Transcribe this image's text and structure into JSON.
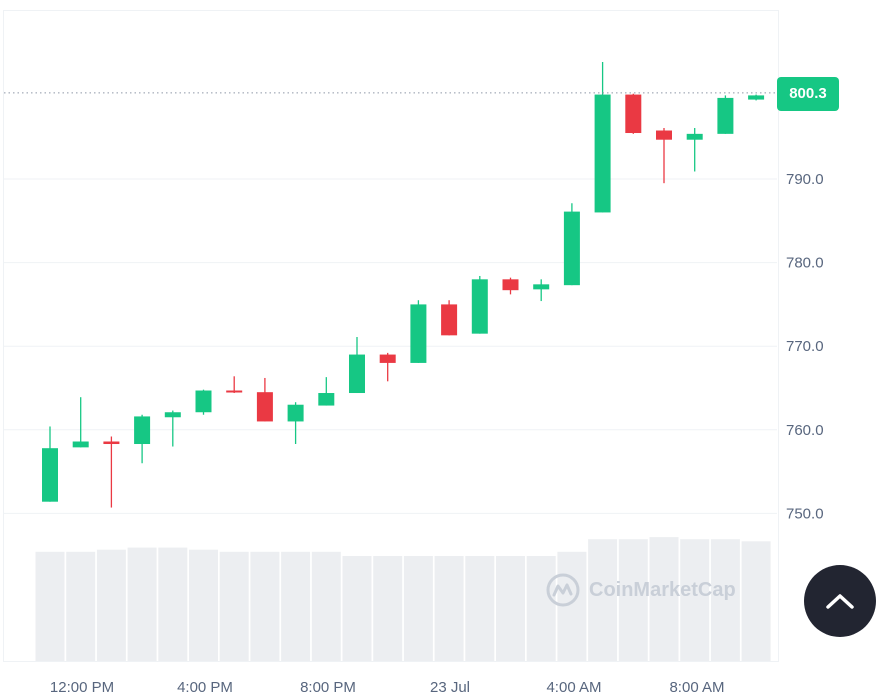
{
  "colors": {
    "up": "#16c784",
    "down": "#ea3943",
    "volume": "#eceef1",
    "grid": "#eff2f5",
    "text": "#58667e",
    "button": "#222531"
  },
  "current_price": {
    "value": 800.3,
    "label": "800.3"
  },
  "watermark": {
    "text": "CoinMarketCap",
    "icon": "coinmarketcap-logo-icon"
  },
  "scroll_top_button": {
    "icon": "chevron-up-icon"
  },
  "chart_data": {
    "type": "candlestick",
    "y_axis": {
      "ticks": [
        "790.0",
        "780.0",
        "770.0",
        "760.0",
        "750.0"
      ],
      "tick_values": [
        790,
        780,
        770,
        760,
        750
      ],
      "position": "right"
    },
    "x_axis": {
      "ticks": [
        "12:00 PM",
        "4:00 PM",
        "8:00 PM",
        "23 Jul",
        "4:00 AM",
        "8:00 AM"
      ]
    },
    "ylim": [
      742,
      800.3
    ],
    "candles": [
      {
        "open": 751.4,
        "high": 760.4,
        "low": 751.4,
        "close": 757.8
      },
      {
        "open": 757.9,
        "high": 763.9,
        "low": 757.9,
        "close": 758.6
      },
      {
        "open": 758.6,
        "high": 759.2,
        "low": 750.7,
        "close": 758.3
      },
      {
        "open": 758.3,
        "high": 761.8,
        "low": 756.0,
        "close": 761.6
      },
      {
        "open": 761.5,
        "high": 762.3,
        "low": 758.0,
        "close": 762.1
      },
      {
        "open": 762.1,
        "high": 764.8,
        "low": 761.8,
        "close": 764.7
      },
      {
        "open": 764.7,
        "high": 766.4,
        "low": 764.4,
        "close": 764.5
      },
      {
        "open": 764.5,
        "high": 766.2,
        "low": 761.0,
        "close": 761.0
      },
      {
        "open": 761.0,
        "high": 763.3,
        "low": 758.3,
        "close": 763.0
      },
      {
        "open": 762.9,
        "high": 766.3,
        "low": 762.9,
        "close": 764.4
      },
      {
        "open": 764.4,
        "high": 771.1,
        "low": 764.4,
        "close": 769.0
      },
      {
        "open": 769.0,
        "high": 769.2,
        "low": 765.8,
        "close": 768.0
      },
      {
        "open": 768.0,
        "high": 775.5,
        "low": 768.0,
        "close": 775.0
      },
      {
        "open": 775.0,
        "high": 775.5,
        "low": 771.3,
        "close": 771.3
      },
      {
        "open": 771.5,
        "high": 778.4,
        "low": 771.5,
        "close": 778.0
      },
      {
        "open": 778.0,
        "high": 778.2,
        "low": 776.2,
        "close": 776.7
      },
      {
        "open": 776.8,
        "high": 778.0,
        "low": 775.4,
        "close": 777.4
      },
      {
        "open": 777.3,
        "high": 787.1,
        "low": 777.3,
        "close": 786.1
      },
      {
        "open": 786.0,
        "high": 804.0,
        "low": 786.0,
        "close": 800.1
      },
      {
        "open": 800.1,
        "high": 800.2,
        "low": 795.4,
        "close": 795.5
      },
      {
        "open": 795.8,
        "high": 796.1,
        "low": 789.5,
        "close": 794.7
      },
      {
        "open": 794.7,
        "high": 796.1,
        "low": 790.9,
        "close": 795.4
      },
      {
        "open": 795.4,
        "high": 800.0,
        "low": 795.4,
        "close": 799.7
      },
      {
        "open": 799.5,
        "high": 800.1,
        "low": 799.4,
        "close": 800.0
      }
    ],
    "volume_relative": [
      0.52,
      0.52,
      0.53,
      0.54,
      0.54,
      0.53,
      0.52,
      0.52,
      0.52,
      0.52,
      0.5,
      0.5,
      0.5,
      0.5,
      0.5,
      0.5,
      0.5,
      0.52,
      0.58,
      0.58,
      0.59,
      0.58,
      0.58,
      0.57
    ],
    "grid": true
  }
}
